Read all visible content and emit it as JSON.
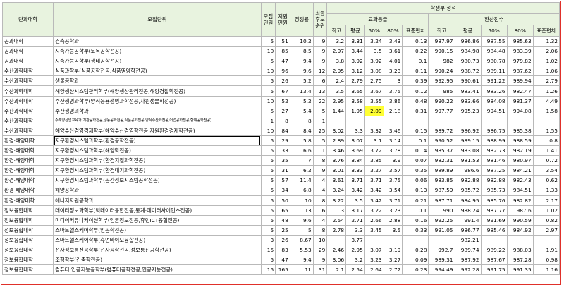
{
  "headers": {
    "college": "단과대학",
    "unit": "모집단위",
    "recruit": [
      "모집",
      "인원"
    ],
    "applicants": [
      "지원",
      "인원"
    ],
    "competition": "경쟁률",
    "final_rank": [
      "최종",
      "후보",
      "순위"
    ],
    "student_grade": "학생부 성적",
    "subject_grade": "교과등급",
    "converted_score": "환산점수",
    "sub_cols": [
      "최고",
      "평균",
      "50%",
      "80%",
      "표준편차"
    ]
  },
  "rows": [
    [
      "공과대학",
      "건축공학과",
      "5",
      "51",
      "10.2",
      "9",
      "3.2",
      "3.31",
      "3.24",
      "3.43",
      "0.13",
      "987.97",
      "986.86",
      "987.55",
      "985.63",
      "1.32"
    ],
    [
      "공과대학",
      "지속가능공학부(토목공학전공)",
      "10",
      "85",
      "8.5",
      "9",
      "2.97",
      "3.44",
      "3.5",
      "3.61",
      "0.22",
      "990.15",
      "984.98",
      "984.48",
      "983.39",
      "2.06"
    ],
    [
      "공과대학",
      "지속가능공학부(생태공학전공)",
      "5",
      "47",
      "9.4",
      "9",
      "3.8",
      "3.92",
      "3.92",
      "4.01",
      "0.1",
      "982",
      "980.73",
      "980.78",
      "979.82",
      "1.02"
    ],
    [
      "수산과학대학",
      "식품과학부(식품공학전공,식품영양학전공)",
      "10",
      "96",
      "9.6",
      "12",
      "2.95",
      "3.12",
      "3.08",
      "3.23",
      "0.11",
      "990.24",
      "988.72",
      "989.11",
      "987.62",
      "1.06"
    ],
    [
      "수산과학대학",
      "생물공학과",
      "5",
      "26",
      "5.2",
      "6",
      "2.4",
      "2.79",
      "2.75",
      "3",
      "0.39",
      "992.95",
      "990.61",
      "991.22",
      "989.94",
      "2.79"
    ],
    [
      "수산과학대학",
      "해양생산시스템관리학부(해양생산관리전공,해양경찰학전공)",
      "5",
      "67",
      "13.4",
      "13",
      "3.5",
      "3.65",
      "3.67",
      "3.75",
      "0.12",
      "985",
      "983.41",
      "983.26",
      "982.47",
      "1.26"
    ],
    [
      "수산과학대학",
      "수산생명과학부(양식응용생명과학전공,자원생물학전공)",
      "10",
      "52",
      "5.2",
      "22",
      "2.95",
      "3.58",
      "3.55",
      "3.86",
      "0.48",
      "990.22",
      "983.66",
      "984.08",
      "981.37",
      "4.49"
    ],
    [
      "수산과학대학",
      "수산생명의학과",
      "5",
      "27",
      "5.4",
      "5",
      "1.44",
      "1.95",
      "2.09",
      "2.18",
      "0.31",
      "997.77",
      "995.23",
      "994.51",
      "994.08",
      "1.58"
    ],
    [
      "수산과학대학",
      "수해양산업교육과(기관공학전공,냉동공학전공,식품공학전공,양식수산학전공,어업공학전공,항해공학전공)",
      "1",
      "8",
      "8",
      "1",
      "",
      "",
      "",
      "",
      "",
      "",
      "",
      "",
      "",
      ""
    ],
    [
      "수산과학대학",
      "해양수산경영경제학부(해양수산경영학전공,자원환경경제학전공)",
      "10",
      "84",
      "8.4",
      "25",
      "3.02",
      "3.3",
      "3.32",
      "3.46",
      "0.15",
      "989.72",
      "986.92",
      "986.75",
      "985.38",
      "1.55"
    ],
    [
      "환경·해양대학",
      "지구환경시스템과학부(환경공학전공)",
      "5",
      "29",
      "5.8",
      "5",
      "2.89",
      "3.07",
      "3.1",
      "3.14",
      "0.1",
      "990.52",
      "989.15",
      "988.99",
      "988.59",
      "0.8"
    ],
    [
      "환경·해양대학",
      "지구환경시스템과학부(해양학전공)",
      "5",
      "33",
      "6.6",
      "1",
      "3.46",
      "3.69",
      "3.72",
      "3.78",
      "0.14",
      "985.37",
      "983.08",
      "982.73",
      "982.19",
      "1.41"
    ],
    [
      "환경·해양대학",
      "지구환경시스템과학부(환경지질과학전공)",
      "5",
      "35",
      "7",
      "8",
      "3.76",
      "3.84",
      "3.85",
      "3.9",
      "0.07",
      "982.31",
      "981.53",
      "981.46",
      "980.97",
      "0.72"
    ],
    [
      "환경·해양대학",
      "지구환경시스템과학부(환경대기과학전공)",
      "5",
      "31",
      "6.2",
      "9",
      "3.01",
      "3.33",
      "3.27",
      "3.57",
      "0.35",
      "989.89",
      "986.6",
      "987.25",
      "984.21",
      "3.54"
    ],
    [
      "환경·해양대학",
      "지구환경시스템과학부(공간정보시스템공학전공)",
      "5",
      "57",
      "11.4",
      "4",
      "3.61",
      "3.71",
      "3.71",
      "3.75",
      "0.06",
      "983.85",
      "982.88",
      "982.88",
      "982.43",
      "0.62"
    ],
    [
      "환경·해양대학",
      "해양공학과",
      "5",
      "34",
      "6.8",
      "4",
      "3.24",
      "3.42",
      "3.42",
      "3.54",
      "0.13",
      "987.59",
      "985.72",
      "985.73",
      "984.51",
      "1.33"
    ],
    [
      "환경·해양대학",
      "에너지자원공학과",
      "5",
      "50",
      "10",
      "8",
      "3.22",
      "3.5",
      "3.42",
      "3.71",
      "0.21",
      "987.71",
      "984.95",
      "985.76",
      "982.82",
      "2.17"
    ],
    [
      "정보융합대학",
      "데이터정보과학부(빅데이터융합전공,통계·데이터사이언스전공)",
      "5",
      "65",
      "13",
      "6",
      "3",
      "3.17",
      "3.22",
      "3.23",
      "0.1",
      "990",
      "988.24",
      "987.77",
      "987.6",
      "1.02"
    ],
    [
      "정보융합대학",
      "미디어커뮤니케이션학부(언론정보전공,휴먼ICT융합전공)",
      "5",
      "48",
      "9.6",
      "4",
      "2.54",
      "2.71",
      "2.66",
      "2.88",
      "0.16",
      "992.25",
      "991.4",
      "991.69",
      "990.59",
      "0.82"
    ],
    [
      "정보융합대학",
      "스마트헬스케어학부(인공학전공)",
      "5",
      "25",
      "5",
      "8",
      "2.78",
      "3.3",
      "3.45",
      "3.5",
      "0.33",
      "991.05",
      "986.77",
      "985.46",
      "984.92",
      "2.97"
    ],
    [
      "정보융합대학",
      "스마트헬스케어학부(휴먼바이오융합전공)",
      "3",
      "26",
      "8.67",
      "10",
      "",
      "3.77",
      "",
      "",
      "",
      "",
      "982.21",
      "",
      "",
      ""
    ],
    [
      "정보융합대학",
      "전자정보통신공학부(전자공학전공,정보통신공학전공)",
      "15",
      "83",
      "5.53",
      "29",
      "2.46",
      "2.95",
      "3.07",
      "3.19",
      "0.28",
      "992.7",
      "989.74",
      "989.22",
      "988.03",
      "1.91"
    ],
    [
      "정보융합대학",
      "조형학부(건축학전공)",
      "5",
      "47",
      "9.4",
      "9",
      "3.06",
      "3.2",
      "3.23",
      "3.27",
      "0.09",
      "989.31",
      "987.92",
      "987.67",
      "987.28",
      "0.98"
    ],
    [
      "정보융합대학",
      "컴퓨터·인공지능공학부(컴퓨터공학전공,인공지능전공)",
      "15",
      "165",
      "11",
      "31",
      "2.1",
      "2.54",
      "2.64",
      "2.72",
      "0.23",
      "994.49",
      "992.28",
      "991.75",
      "991.35",
      "1.16"
    ]
  ]
}
